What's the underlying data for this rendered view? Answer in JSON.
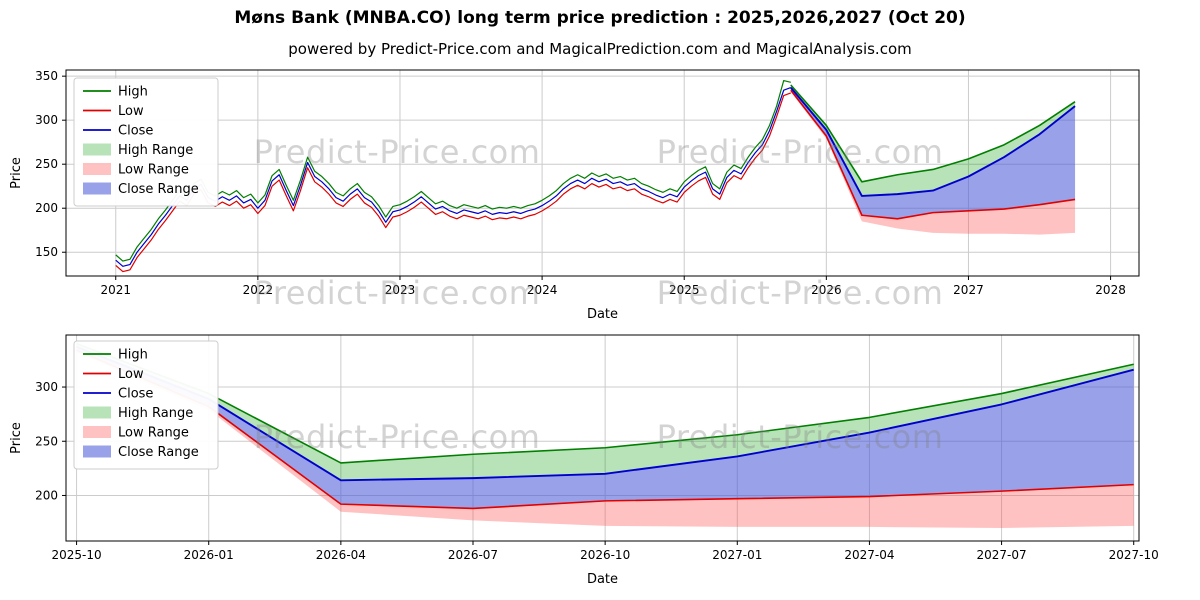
{
  "title": "Møns Bank (MNBA.CO) long term price prediction : 2025,2026,2027 (Oct 20)",
  "subtitle": "powered by Predict-Price.com and MagicalPrediction.com and MagicalAnalysis.com",
  "watermark": "Predict-Price.com",
  "colors": {
    "high": "#007f00",
    "low": "#e00000",
    "close": "#0000cc",
    "high_range": "rgba(0,150,0,0.28)",
    "low_range": "rgba(255,70,70,0.33)",
    "close_range": "rgba(70,85,215,0.55)",
    "grid": "#cccccc"
  },
  "legend": [
    {
      "label": "High",
      "key": "high",
      "swatch": "line"
    },
    {
      "label": "Low",
      "key": "low",
      "swatch": "line"
    },
    {
      "label": "Close",
      "key": "close",
      "swatch": "line"
    },
    {
      "label": "High Range",
      "key": "high_range",
      "swatch": "patch"
    },
    {
      "label": "Low Range",
      "key": "low_range",
      "swatch": "patch"
    },
    {
      "label": "Close Range",
      "key": "close_range",
      "swatch": "patch"
    }
  ],
  "chart_data": [
    {
      "type": "line",
      "title": "",
      "xlabel": "Date",
      "ylabel": "Price",
      "xlim": [
        2020.65,
        2028.2
      ],
      "ylim": [
        123,
        357
      ],
      "xticks": [
        2021,
        2022,
        2023,
        2024,
        2025,
        2026,
        2027,
        2028
      ],
      "xtick_labels": [
        "2021",
        "2022",
        "2023",
        "2024",
        "2025",
        "2026",
        "2027",
        "2028"
      ],
      "yticks": [
        150,
        200,
        250,
        300,
        350
      ],
      "grid": true,
      "legend_position": "upper-left",
      "history": {
        "x0": 2021.0,
        "dx": 0.05,
        "close": [
          141,
          134,
          136,
          150,
          160,
          170,
          182,
          192,
          203,
          214,
          209,
          222,
          227,
          212,
          208,
          213,
          209,
          214,
          206,
          210,
          200,
          209,
          231,
          238,
          220,
          203,
          226,
          252,
          236,
          230,
          222,
          212,
          208,
          216,
          222,
          212,
          207,
          197,
          184,
          196,
          198,
          202,
          207,
          213,
          206,
          199,
          202,
          197,
          194,
          198,
          196,
          194,
          197,
          193,
          195,
          194,
          196,
          194,
          197,
          199,
          203,
          208,
          214,
          222,
          228,
          232,
          228,
          234,
          230,
          233,
          228,
          230,
          226,
          228,
          222,
          219,
          215,
          212,
          216,
          213,
          224,
          231,
          237,
          241,
          222,
          216,
          235,
          243,
          239,
          252,
          263,
          272,
          288,
          310,
          334,
          337
        ],
        "high": [
          147,
          140,
          142,
          156,
          166,
          176,
          188,
          198,
          209,
          220,
          215,
          228,
          233,
          218,
          214,
          219,
          215,
          220,
          212,
          216,
          206,
          215,
          237,
          244,
          226,
          209,
          232,
          258,
          242,
          236,
          228,
          218,
          214,
          222,
          228,
          218,
          213,
          203,
          190,
          202,
          204,
          208,
          213,
          219,
          212,
          205,
          208,
          203,
          200,
          204,
          202,
          200,
          203,
          199,
          201,
          200,
          202,
          200,
          203,
          205,
          209,
          214,
          220,
          228,
          234,
          238,
          234,
          240,
          236,
          239,
          234,
          236,
          232,
          234,
          228,
          225,
          221,
          218,
          222,
          219,
          230,
          237,
          243,
          247,
          228,
          222,
          241,
          249,
          245,
          258,
          269,
          278,
          294,
          316,
          345,
          343
        ],
        "low": [
          135,
          128,
          130,
          144,
          154,
          164,
          176,
          186,
          197,
          208,
          203,
          216,
          221,
          206,
          202,
          207,
          203,
          208,
          200,
          204,
          194,
          203,
          225,
          232,
          214,
          197,
          220,
          246,
          230,
          224,
          216,
          206,
          202,
          210,
          216,
          206,
          201,
          191,
          178,
          190,
          192,
          196,
          201,
          207,
          200,
          193,
          196,
          191,
          188,
          192,
          190,
          188,
          191,
          187,
          189,
          188,
          190,
          188,
          191,
          193,
          197,
          202,
          208,
          216,
          222,
          226,
          222,
          228,
          224,
          227,
          222,
          224,
          220,
          222,
          216,
          213,
          209,
          206,
          210,
          207,
          218,
          225,
          231,
          235,
          216,
          210,
          229,
          237,
          233,
          246,
          257,
          266,
          282,
          304,
          328,
          331
        ]
      },
      "forecast": {
        "x": [
          2025.75,
          2026.0,
          2026.25,
          2026.5,
          2026.75,
          2027.0,
          2027.25,
          2027.5,
          2027.75
        ],
        "x_labels": [
          "2025-10",
          "2026-01",
          "2026-04",
          "2026-07",
          "2026-10",
          "2027-01",
          "2027-04",
          "2027-07",
          "2027-10"
        ],
        "high_upper": [
          340,
          294,
          230,
          238,
          244,
          256,
          272,
          294,
          321
        ],
        "close": [
          337,
          289,
          214,
          216,
          220,
          236,
          258,
          284,
          316
        ],
        "low": [
          334,
          282,
          192,
          188,
          195,
          197,
          199,
          204,
          210
        ],
        "low_lower": [
          332,
          279,
          185,
          177,
          172,
          171,
          171,
          170,
          172
        ]
      }
    },
    {
      "type": "line",
      "title": "",
      "xlabel": "Date",
      "ylabel": "Price",
      "xlim": [
        2025.73,
        2027.76
      ],
      "ylim": [
        158,
        348
      ],
      "xticks": [
        2025.75,
        2026.0,
        2026.25,
        2026.5,
        2026.75,
        2027.0,
        2027.25,
        2027.5,
        2027.75
      ],
      "xtick_labels": [
        "2025-10",
        "2026-01",
        "2026-04",
        "2026-07",
        "2026-10",
        "2027-01",
        "2027-04",
        "2027-07",
        "2027-10"
      ],
      "yticks": [
        200,
        250,
        300
      ],
      "grid": true,
      "legend_position": "upper-left",
      "forecast": {
        "x": [
          2025.75,
          2026.0,
          2026.25,
          2026.5,
          2026.75,
          2027.0,
          2027.25,
          2027.5,
          2027.75
        ],
        "x_labels": [
          "2025-10",
          "2026-01",
          "2026-04",
          "2026-07",
          "2026-10",
          "2027-01",
          "2027-04",
          "2027-07",
          "2027-10"
        ],
        "high_upper": [
          340,
          294,
          230,
          238,
          244,
          256,
          272,
          294,
          321
        ],
        "close": [
          337,
          289,
          214,
          216,
          220,
          236,
          258,
          284,
          316
        ],
        "low": [
          334,
          282,
          192,
          188,
          195,
          197,
          199,
          204,
          210
        ],
        "low_lower": [
          332,
          279,
          185,
          177,
          172,
          171,
          171,
          170,
          172
        ]
      }
    }
  ]
}
